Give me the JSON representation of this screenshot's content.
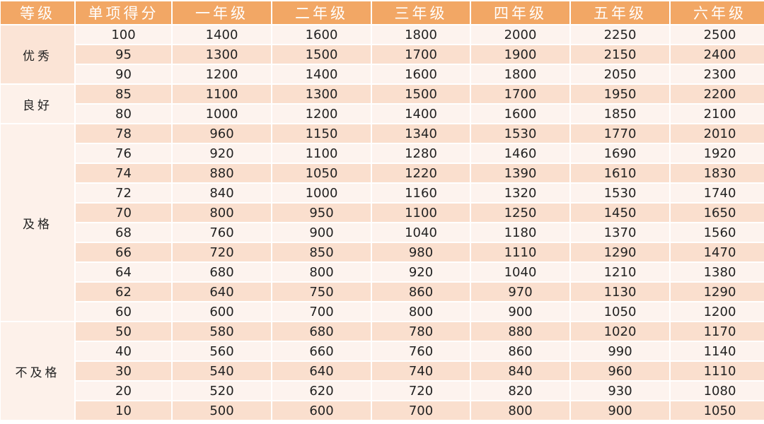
{
  "headers": [
    "等级",
    "单项得分",
    "一年级",
    "二年级",
    "三年级",
    "四年级",
    "五年级",
    "六年级"
  ],
  "colors": {
    "header": "#F2A765",
    "row_light": "#FDF3EE",
    "row_dark": "#FADFCE"
  },
  "groups": [
    {
      "grade": "优秀",
      "rows": [
        [
          "100",
          "1400",
          "1600",
          "1800",
          "2000",
          "2250",
          "2500"
        ],
        [
          "95",
          "1300",
          "1500",
          "1700",
          "1900",
          "2150",
          "2400"
        ],
        [
          "90",
          "1200",
          "1400",
          "1600",
          "1800",
          "2050",
          "2300"
        ]
      ]
    },
    {
      "grade": "良好",
      "rows": [
        [
          "85",
          "1100",
          "1300",
          "1500",
          "1700",
          "1950",
          "2200"
        ],
        [
          "80",
          "1000",
          "1200",
          "1400",
          "1600",
          "1850",
          "2100"
        ]
      ]
    },
    {
      "grade": "及格",
      "rows": [
        [
          "78",
          "960",
          "1150",
          "1340",
          "1530",
          "1770",
          "2010"
        ],
        [
          "76",
          "920",
          "1100",
          "1280",
          "1460",
          "1690",
          "1920"
        ],
        [
          "74",
          "880",
          "1050",
          "1220",
          "1390",
          "1610",
          "1830"
        ],
        [
          "72",
          "840",
          "1000",
          "1160",
          "1320",
          "1530",
          "1740"
        ],
        [
          "70",
          "800",
          "950",
          "1100",
          "1250",
          "1450",
          "1650"
        ],
        [
          "68",
          "760",
          "900",
          "1040",
          "1180",
          "1370",
          "1560"
        ],
        [
          "66",
          "720",
          "850",
          "980",
          "1110",
          "1290",
          "1470"
        ],
        [
          "64",
          "680",
          "800",
          "920",
          "1040",
          "1210",
          "1380"
        ],
        [
          "62",
          "640",
          "750",
          "860",
          "970",
          "1130",
          "1290"
        ],
        [
          "60",
          "600",
          "700",
          "800",
          "900",
          "1050",
          "1200"
        ]
      ]
    },
    {
      "grade": "不及格",
      "rows": [
        [
          "50",
          "580",
          "680",
          "780",
          "880",
          "1020",
          "1170"
        ],
        [
          "40",
          "560",
          "660",
          "760",
          "860",
          "990",
          "1140"
        ],
        [
          "30",
          "540",
          "640",
          "740",
          "840",
          "960",
          "1110"
        ],
        [
          "20",
          "520",
          "620",
          "720",
          "820",
          "930",
          "1080"
        ],
        [
          "10",
          "500",
          "600",
          "700",
          "800",
          "900",
          "1050"
        ]
      ]
    }
  ]
}
